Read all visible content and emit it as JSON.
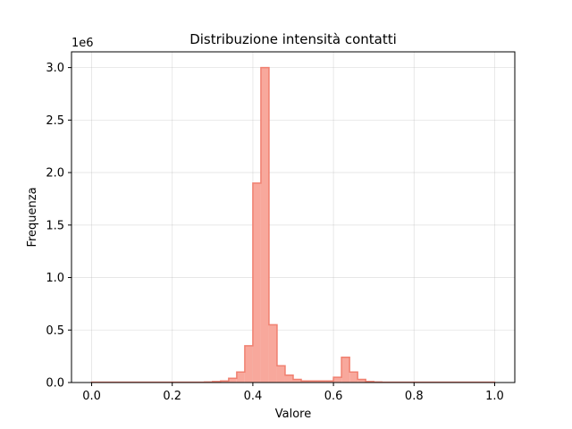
{
  "chart_data": {
    "type": "bar",
    "title": "Distribuzione intensità contatti",
    "xlabel": "Valore",
    "ylabel": "Frequenza",
    "y_offset_label": "1e6",
    "xlim": [
      -0.05,
      1.05
    ],
    "ylim": [
      0,
      3.15
    ],
    "grid": true,
    "x_ticks": [
      0.0,
      0.2,
      0.4,
      0.6,
      0.8,
      1.0
    ],
    "x_tick_labels": [
      "0.0",
      "0.2",
      "0.4",
      "0.6",
      "0.8",
      "1.0"
    ],
    "y_ticks": [
      0.0,
      0.5,
      1.0,
      1.5,
      2.0,
      2.5,
      3.0
    ],
    "y_tick_labels": [
      "0.0",
      "0.5",
      "1.0",
      "1.5",
      "2.0",
      "2.5",
      "3.0"
    ],
    "bin_width": 0.02,
    "bin_starts": [
      0.0,
      0.02,
      0.04,
      0.06,
      0.08,
      0.1,
      0.12,
      0.14,
      0.16,
      0.18,
      0.2,
      0.22,
      0.24,
      0.26,
      0.28,
      0.3,
      0.32,
      0.34,
      0.36,
      0.38,
      0.4,
      0.42,
      0.44,
      0.46,
      0.48,
      0.5,
      0.52,
      0.54,
      0.56,
      0.58,
      0.6,
      0.62,
      0.64,
      0.66,
      0.68,
      0.7,
      0.72,
      0.74,
      0.76,
      0.78,
      0.8,
      0.82,
      0.84,
      0.86,
      0.88,
      0.9,
      0.92,
      0.94,
      0.96,
      0.98
    ],
    "values": [
      0.003,
      0.003,
      0.003,
      0.003,
      0.003,
      0.003,
      0.003,
      0.003,
      0.003,
      0.003,
      0.003,
      0.003,
      0.003,
      0.003,
      0.005,
      0.01,
      0.015,
      0.04,
      0.1,
      0.35,
      1.9,
      3.0,
      0.55,
      0.16,
      0.07,
      0.03,
      0.015,
      0.015,
      0.015,
      0.015,
      0.05,
      0.24,
      0.1,
      0.03,
      0.01,
      0.005,
      0.003,
      0.003,
      0.003,
      0.003,
      0.003,
      0.003,
      0.003,
      0.003,
      0.003,
      0.003,
      0.003,
      0.003,
      0.003,
      0.003
    ],
    "bar_color": "#f8a89c",
    "edge_color": "#f08070"
  }
}
